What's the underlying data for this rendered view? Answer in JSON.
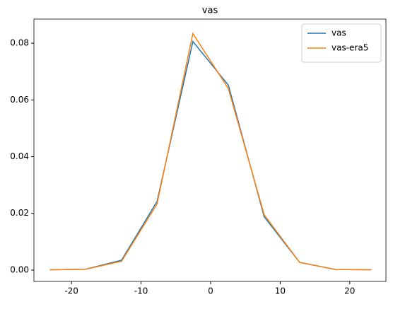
{
  "chart_data": {
    "type": "line",
    "title": "vas",
    "x": [
      -23.1,
      -17.95,
      -12.8,
      -7.7,
      -2.55,
      2.55,
      7.7,
      12.8,
      17.95,
      23.1
    ],
    "series": [
      {
        "name": "vas",
        "color": "#1f77b4",
        "values": [
          0.0001,
          0.0003,
          0.0035,
          0.0242,
          0.0806,
          0.0652,
          0.0188,
          0.0027,
          0.0002,
          0.0001
        ]
      },
      {
        "name": "vas-era5",
        "color": "#ff7f0e",
        "values": [
          0.0001,
          0.0003,
          0.0031,
          0.0233,
          0.0834,
          0.064,
          0.0195,
          0.0027,
          0.0002,
          0.0001
        ]
      }
    ],
    "xlim": [
      -25.4,
      25.2
    ],
    "xticks": [
      -20,
      -10,
      0,
      10,
      20
    ],
    "ylim": [
      -0.004,
      0.0885
    ],
    "yticks": [
      {
        "value": 0,
        "label": "0.00"
      },
      {
        "value": 0.02,
        "label": "0.02"
      },
      {
        "value": 0.04,
        "label": "0.04"
      },
      {
        "value": 0.06,
        "label": "0.06"
      },
      {
        "value": 0.08,
        "label": "0.08"
      }
    ],
    "legend": "upper right",
    "grid": false
  }
}
